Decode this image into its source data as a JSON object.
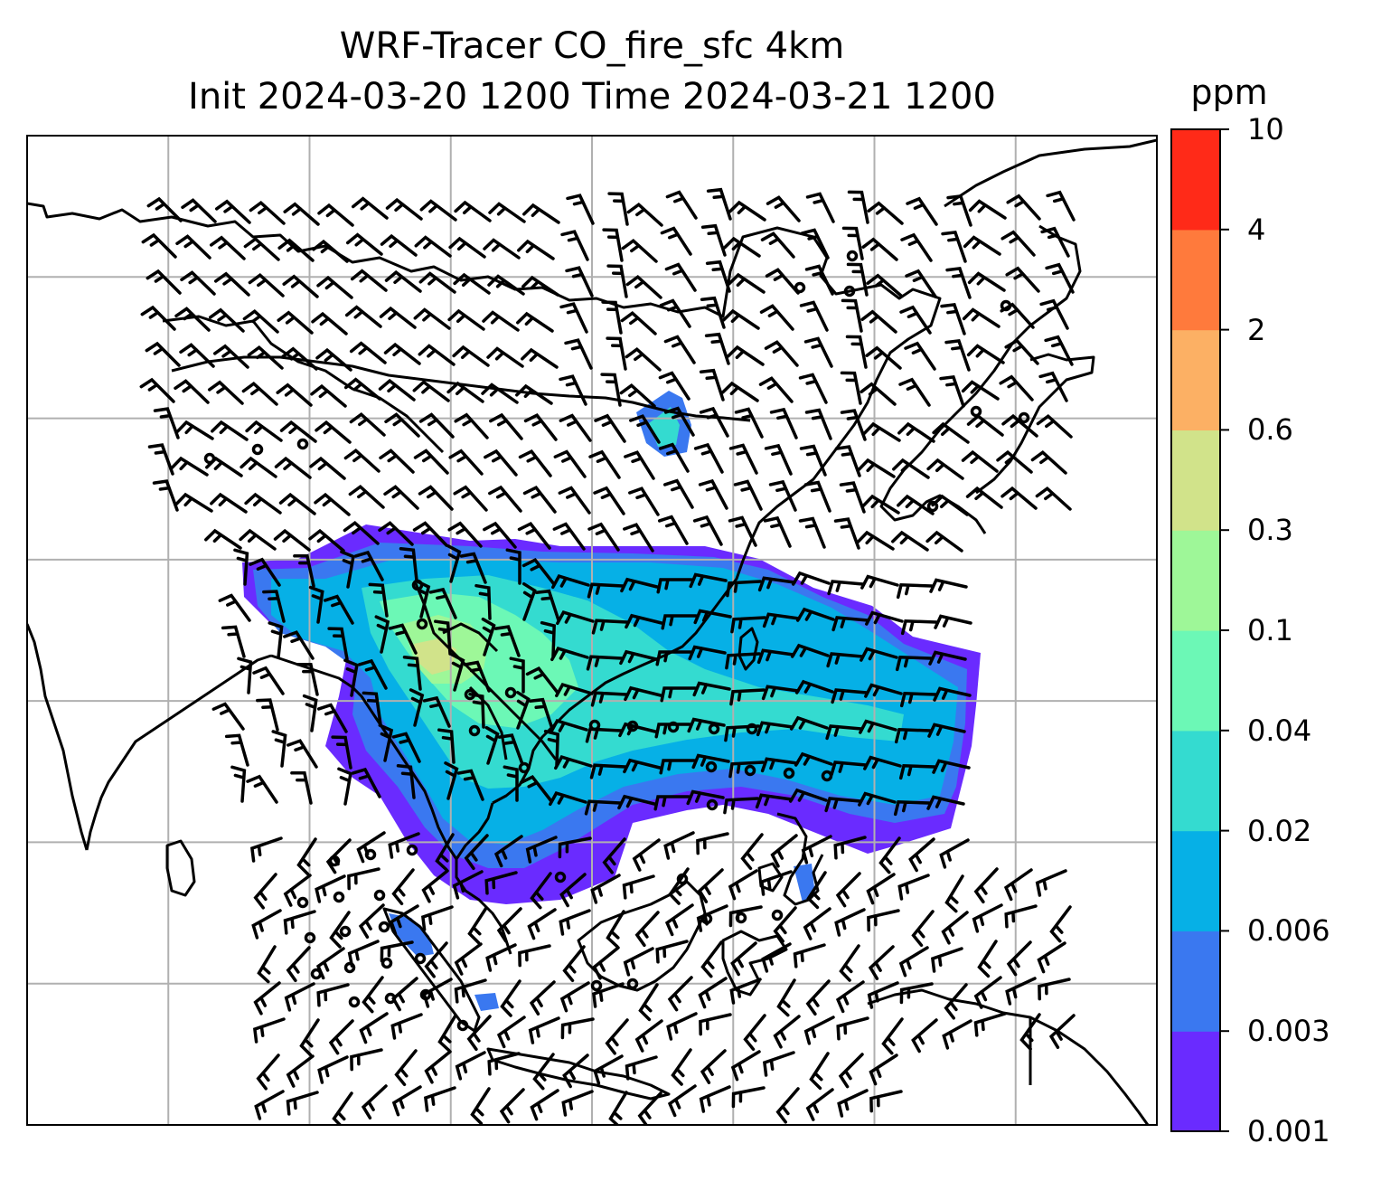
{
  "title": {
    "line1": "WRF-Tracer CO_fire_sfc 4km",
    "line2": "Init 2024-03-20 1200 Time 2024-03-21 1200"
  },
  "colorbar": {
    "unit": "ppm",
    "levels": [
      "0.001",
      "0.003",
      "0.006",
      "0.02",
      "0.04",
      "0.1",
      "0.3",
      "0.6",
      "2",
      "4",
      "10"
    ],
    "colors": [
      "#6a2bff",
      "#3a78f0",
      "#06b0e6",
      "#34dbd0",
      "#6cf8b6",
      "#9ef798",
      "#d1e38a",
      "#fcb064",
      "#ff7a3c",
      "#ff2a18"
    ]
  },
  "map": {
    "gridline_color": "#b0b0b0",
    "coastline_color": "#000000",
    "barb_color": "#000000",
    "grid_columns": 8,
    "grid_rows": 7
  }
}
